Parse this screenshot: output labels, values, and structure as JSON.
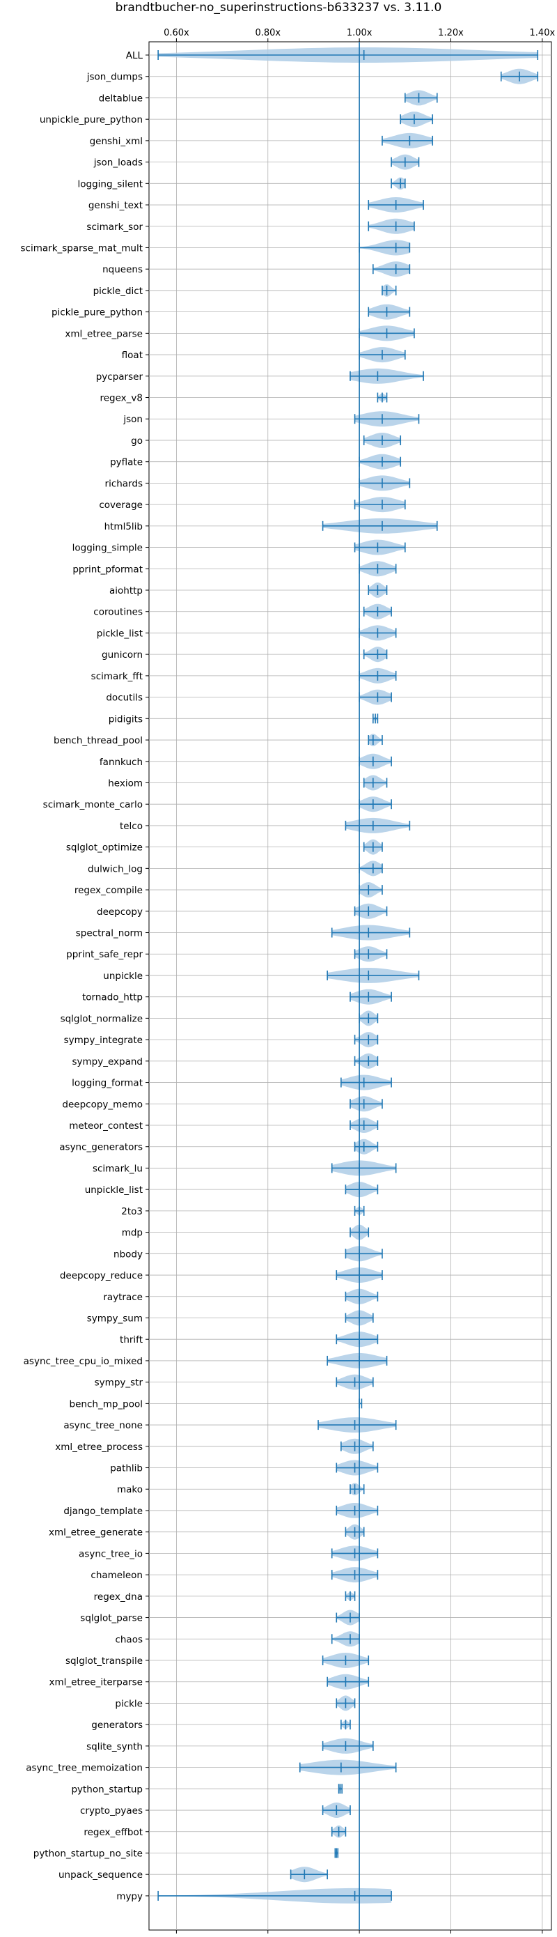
{
  "chart_data": {
    "type": "violin",
    "title": "brandtbucher-no_superinstructions-b633237 vs. 3.11.0",
    "orientation": "horizontal",
    "xlim": [
      0.54,
      1.42
    ],
    "x_ticks": [
      0.6,
      0.8,
      1.0,
      1.2,
      1.4
    ],
    "x_tick_labels": [
      "0.60x",
      "0.80x",
      "1.00x",
      "1.20x",
      "1.40x"
    ],
    "x_tick_positions": [
      "top",
      "bottom"
    ],
    "reference_line": 1.0,
    "grid": true,
    "color": "#1f77b4",
    "fill_color": "#aecde6",
    "benchmarks": [
      {
        "name": "ALL",
        "min": 0.56,
        "max": 1.39,
        "mean": 1.01
      },
      {
        "name": "json_dumps",
        "min": 1.31,
        "max": 1.39,
        "mean": 1.35
      },
      {
        "name": "deltablue",
        "min": 1.1,
        "max": 1.17,
        "mean": 1.13
      },
      {
        "name": "unpickle_pure_python",
        "min": 1.09,
        "max": 1.16,
        "mean": 1.12
      },
      {
        "name": "genshi_xml",
        "min": 1.05,
        "max": 1.16,
        "mean": 1.11
      },
      {
        "name": "json_loads",
        "min": 1.07,
        "max": 1.13,
        "mean": 1.1
      },
      {
        "name": "logging_silent",
        "min": 1.07,
        "max": 1.1,
        "mean": 1.09
      },
      {
        "name": "genshi_text",
        "min": 1.02,
        "max": 1.14,
        "mean": 1.08
      },
      {
        "name": "scimark_sor",
        "min": 1.02,
        "max": 1.12,
        "mean": 1.08
      },
      {
        "name": "scimark_sparse_mat_mult",
        "min": 1.0,
        "max": 1.11,
        "mean": 1.08
      },
      {
        "name": "nqueens",
        "min": 1.03,
        "max": 1.11,
        "mean": 1.08
      },
      {
        "name": "pickle_dict",
        "min": 1.05,
        "max": 1.08,
        "mean": 1.06
      },
      {
        "name": "pickle_pure_python",
        "min": 1.02,
        "max": 1.11,
        "mean": 1.06
      },
      {
        "name": "xml_etree_parse",
        "min": 1.0,
        "max": 1.12,
        "mean": 1.06
      },
      {
        "name": "float",
        "min": 1.0,
        "max": 1.1,
        "mean": 1.05
      },
      {
        "name": "pycparser",
        "min": 0.98,
        "max": 1.14,
        "mean": 1.04
      },
      {
        "name": "regex_v8",
        "min": 1.04,
        "max": 1.06,
        "mean": 1.05
      },
      {
        "name": "json",
        "min": 0.99,
        "max": 1.13,
        "mean": 1.05
      },
      {
        "name": "go",
        "min": 1.01,
        "max": 1.09,
        "mean": 1.05
      },
      {
        "name": "pyflate",
        "min": 1.0,
        "max": 1.09,
        "mean": 1.05
      },
      {
        "name": "richards",
        "min": 1.0,
        "max": 1.11,
        "mean": 1.05
      },
      {
        "name": "coverage",
        "min": 0.99,
        "max": 1.1,
        "mean": 1.05
      },
      {
        "name": "html5lib",
        "min": 0.92,
        "max": 1.17,
        "mean": 1.05
      },
      {
        "name": "logging_simple",
        "min": 0.99,
        "max": 1.1,
        "mean": 1.04
      },
      {
        "name": "pprint_pformat",
        "min": 1.0,
        "max": 1.08,
        "mean": 1.04
      },
      {
        "name": "aiohttp",
        "min": 1.02,
        "max": 1.06,
        "mean": 1.04
      },
      {
        "name": "coroutines",
        "min": 1.01,
        "max": 1.07,
        "mean": 1.04
      },
      {
        "name": "pickle_list",
        "min": 1.0,
        "max": 1.08,
        "mean": 1.04
      },
      {
        "name": "gunicorn",
        "min": 1.01,
        "max": 1.06,
        "mean": 1.04
      },
      {
        "name": "scimark_fft",
        "min": 1.0,
        "max": 1.08,
        "mean": 1.04
      },
      {
        "name": "docutils",
        "min": 1.0,
        "max": 1.07,
        "mean": 1.04
      },
      {
        "name": "pidigits",
        "min": 1.03,
        "max": 1.04,
        "mean": 1.035
      },
      {
        "name": "bench_thread_pool",
        "min": 1.02,
        "max": 1.05,
        "mean": 1.03
      },
      {
        "name": "fannkuch",
        "min": 1.0,
        "max": 1.07,
        "mean": 1.03
      },
      {
        "name": "hexiom",
        "min": 1.01,
        "max": 1.06,
        "mean": 1.03
      },
      {
        "name": "scimark_monte_carlo",
        "min": 1.0,
        "max": 1.07,
        "mean": 1.03
      },
      {
        "name": "telco",
        "min": 0.97,
        "max": 1.11,
        "mean": 1.03
      },
      {
        "name": "sqlglot_optimize",
        "min": 1.01,
        "max": 1.05,
        "mean": 1.03
      },
      {
        "name": "dulwich_log",
        "min": 1.0,
        "max": 1.05,
        "mean": 1.03
      },
      {
        "name": "regex_compile",
        "min": 1.0,
        "max": 1.05,
        "mean": 1.02
      },
      {
        "name": "deepcopy",
        "min": 0.99,
        "max": 1.06,
        "mean": 1.02
      },
      {
        "name": "spectral_norm",
        "min": 0.94,
        "max": 1.11,
        "mean": 1.02
      },
      {
        "name": "pprint_safe_repr",
        "min": 0.99,
        "max": 1.06,
        "mean": 1.02
      },
      {
        "name": "unpickle",
        "min": 0.93,
        "max": 1.13,
        "mean": 1.02
      },
      {
        "name": "tornado_http",
        "min": 0.98,
        "max": 1.07,
        "mean": 1.02
      },
      {
        "name": "sqlglot_normalize",
        "min": 1.0,
        "max": 1.04,
        "mean": 1.02
      },
      {
        "name": "sympy_integrate",
        "min": 0.99,
        "max": 1.04,
        "mean": 1.02
      },
      {
        "name": "sympy_expand",
        "min": 0.99,
        "max": 1.04,
        "mean": 1.02
      },
      {
        "name": "logging_format",
        "min": 0.96,
        "max": 1.07,
        "mean": 1.01
      },
      {
        "name": "deepcopy_memo",
        "min": 0.98,
        "max": 1.05,
        "mean": 1.01
      },
      {
        "name": "meteor_contest",
        "min": 0.98,
        "max": 1.04,
        "mean": 1.01
      },
      {
        "name": "async_generators",
        "min": 0.99,
        "max": 1.04,
        "mean": 1.01
      },
      {
        "name": "scimark_lu",
        "min": 0.94,
        "max": 1.08,
        "mean": 1.0
      },
      {
        "name": "unpickle_list",
        "min": 0.97,
        "max": 1.04,
        "mean": 1.0
      },
      {
        "name": "2to3",
        "min": 0.99,
        "max": 1.01,
        "mean": 1.0
      },
      {
        "name": "mdp",
        "min": 0.98,
        "max": 1.02,
        "mean": 1.0
      },
      {
        "name": "nbody",
        "min": 0.97,
        "max": 1.05,
        "mean": 1.0
      },
      {
        "name": "deepcopy_reduce",
        "min": 0.95,
        "max": 1.05,
        "mean": 1.0
      },
      {
        "name": "raytrace",
        "min": 0.97,
        "max": 1.04,
        "mean": 1.0
      },
      {
        "name": "sympy_sum",
        "min": 0.97,
        "max": 1.03,
        "mean": 1.0
      },
      {
        "name": "thrift",
        "min": 0.95,
        "max": 1.04,
        "mean": 1.0
      },
      {
        "name": "async_tree_cpu_io_mixed",
        "min": 0.93,
        "max": 1.06,
        "mean": 1.0
      },
      {
        "name": "sympy_str",
        "min": 0.95,
        "max": 1.03,
        "mean": 0.99
      },
      {
        "name": "bench_mp_pool",
        "min": 1.0,
        "max": 1.005,
        "mean": 1.0
      },
      {
        "name": "async_tree_none",
        "min": 0.91,
        "max": 1.08,
        "mean": 0.99
      },
      {
        "name": "xml_etree_process",
        "min": 0.96,
        "max": 1.03,
        "mean": 0.99
      },
      {
        "name": "pathlib",
        "min": 0.95,
        "max": 1.04,
        "mean": 0.99
      },
      {
        "name": "mako",
        "min": 0.98,
        "max": 1.01,
        "mean": 0.99
      },
      {
        "name": "django_template",
        "min": 0.95,
        "max": 1.04,
        "mean": 0.99
      },
      {
        "name": "xml_etree_generate",
        "min": 0.97,
        "max": 1.01,
        "mean": 0.99
      },
      {
        "name": "async_tree_io",
        "min": 0.94,
        "max": 1.04,
        "mean": 0.99
      },
      {
        "name": "chameleon",
        "min": 0.94,
        "max": 1.04,
        "mean": 0.99
      },
      {
        "name": "regex_dna",
        "min": 0.97,
        "max": 0.99,
        "mean": 0.98
      },
      {
        "name": "sqlglot_parse",
        "min": 0.95,
        "max": 1.0,
        "mean": 0.98
      },
      {
        "name": "chaos",
        "min": 0.94,
        "max": 1.0,
        "mean": 0.98
      },
      {
        "name": "sqlglot_transpile",
        "min": 0.92,
        "max": 1.02,
        "mean": 0.97
      },
      {
        "name": "xml_etree_iterparse",
        "min": 0.93,
        "max": 1.02,
        "mean": 0.97
      },
      {
        "name": "pickle",
        "min": 0.95,
        "max": 0.99,
        "mean": 0.97
      },
      {
        "name": "generators",
        "min": 0.96,
        "max": 0.98,
        "mean": 0.97
      },
      {
        "name": "sqlite_synth",
        "min": 0.92,
        "max": 1.03,
        "mean": 0.97
      },
      {
        "name": "async_tree_memoization",
        "min": 0.87,
        "max": 1.08,
        "mean": 0.96
      },
      {
        "name": "python_startup",
        "min": 0.955,
        "max": 0.962,
        "mean": 0.958
      },
      {
        "name": "crypto_pyaes",
        "min": 0.92,
        "max": 0.98,
        "mean": 0.95
      },
      {
        "name": "regex_effbot",
        "min": 0.94,
        "max": 0.97,
        "mean": 0.955
      },
      {
        "name": "python_startup_no_site",
        "min": 0.947,
        "max": 0.953,
        "mean": 0.95
      },
      {
        "name": "unpack_sequence",
        "min": 0.85,
        "max": 0.93,
        "mean": 0.88
      },
      {
        "name": "mypy",
        "min": 0.56,
        "max": 1.07,
        "mean": 0.99
      }
    ]
  }
}
